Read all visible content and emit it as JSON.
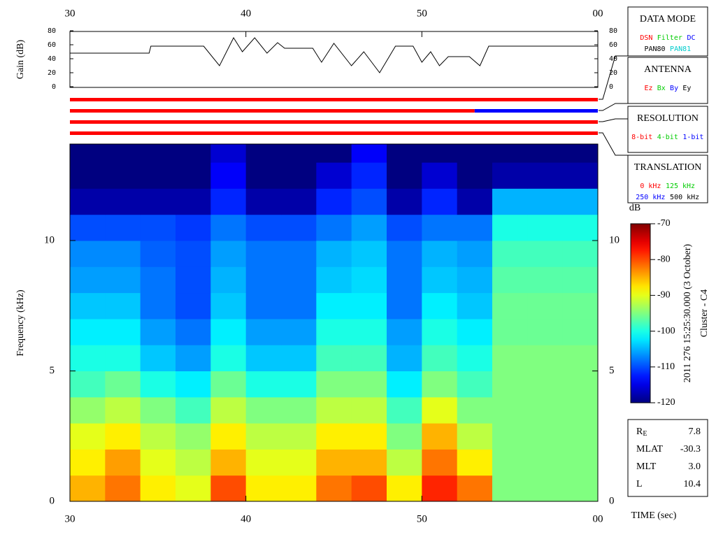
{
  "chart_data": [
    {
      "type": "line",
      "y_label": "Gain (dB)",
      "color": "#000000",
      "x": [
        30,
        34.5,
        34.6,
        37.6,
        38.5,
        39.3,
        39.8,
        40.5,
        41.2,
        41.8,
        42.2,
        43.8,
        44.3,
        45,
        46,
        46.7,
        47.6,
        48.5,
        49.5,
        50,
        50.5,
        51,
        51.5,
        52.7,
        53.3,
        53.8,
        60
      ],
      "values": [
        48,
        48,
        58,
        58,
        30,
        70,
        50,
        70,
        48,
        63,
        55,
        55,
        35,
        62,
        30,
        50,
        20,
        58,
        58,
        35,
        50,
        30,
        43,
        43,
        30,
        58,
        58
      ],
      "xlim": [
        30,
        60
      ],
      "ylim": [
        0,
        80
      ],
      "yticks": [
        0,
        20,
        40,
        60,
        80
      ],
      "xticks": [
        30,
        40,
        50,
        {
          "value": 60,
          "label": "00"
        }
      ]
    },
    {
      "type": "heatmap",
      "y_label": "Frequency (kHz)",
      "x_label": "TIME (sec)",
      "colormap": "jet",
      "x_bins": [
        30,
        32,
        34,
        36,
        38,
        40,
        42,
        44,
        46,
        48,
        50,
        52,
        54,
        56,
        58,
        60
      ],
      "y_bins": [
        0,
        1,
        2,
        3,
        4,
        5,
        6,
        7,
        8,
        9,
        10,
        11,
        12,
        13,
        13.7
      ],
      "z": [
        [
          -85,
          -82,
          -88,
          -90,
          -80,
          -88,
          -88,
          -82,
          -80,
          -88,
          -78,
          -82,
          -95,
          -95,
          -95
        ],
        [
          -88,
          -84,
          -90,
          -92,
          -85,
          -90,
          -90,
          -85,
          -85,
          -92,
          -82,
          -88,
          -95,
          -95,
          -95
        ],
        [
          -90,
          -88,
          -92,
          -94,
          -88,
          -92,
          -92,
          -88,
          -88,
          -95,
          -85,
          -92,
          -95,
          -95,
          -95
        ],
        [
          -94,
          -92,
          -95,
          -98,
          -92,
          -95,
          -95,
          -92,
          -92,
          -98,
          -90,
          -95,
          -95,
          -95,
          -95
        ],
        [
          -98,
          -96,
          -100,
          -102,
          -96,
          -100,
          -100,
          -95,
          -95,
          -102,
          -95,
          -98,
          -95,
          -95,
          -95
        ],
        [
          -100,
          -100,
          -104,
          -106,
          -100,
          -104,
          -104,
          -98,
          -98,
          -105,
          -98,
          -100,
          -95,
          -95,
          -95
        ],
        [
          -102,
          -102,
          -106,
          -108,
          -102,
          -106,
          -106,
          -100,
          -100,
          -106,
          -100,
          -102,
          -96,
          -96,
          -96
        ],
        [
          -104,
          -104,
          -108,
          -110,
          -104,
          -108,
          -108,
          -102,
          -102,
          -108,
          -102,
          -104,
          -96,
          -96,
          -96
        ],
        [
          -106,
          -106,
          -108,
          -110,
          -105,
          -108,
          -108,
          -104,
          -103,
          -108,
          -104,
          -105,
          -97,
          -97,
          -97
        ],
        [
          -107,
          -107,
          -109,
          -110,
          -106,
          -108,
          -108,
          -105,
          -104,
          -108,
          -105,
          -106,
          -98,
          -98,
          -98
        ],
        [
          -110,
          -110,
          -110,
          -111,
          -108,
          -110,
          -110,
          -108,
          -106,
          -110,
          -108,
          -108,
          -100,
          -100,
          -100
        ],
        [
          -118,
          -118,
          -118,
          -118,
          -112,
          -118,
          -118,
          -112,
          -110,
          -118,
          -112,
          -118,
          -105,
          -105,
          -105
        ],
        [
          -120,
          -120,
          -120,
          -120,
          -114,
          -120,
          -120,
          -116,
          -112,
          -120,
          -116,
          -120,
          -118,
          -118,
          -118
        ],
        [
          -120,
          -120,
          -120,
          -120,
          -116,
          -120,
          -120,
          -120,
          -114,
          -120,
          -120,
          -120,
          -120,
          -120,
          -120
        ]
      ],
      "xlim": [
        30,
        60
      ],
      "ylim": [
        0,
        13.7
      ],
      "yticks": [
        0,
        5,
        10
      ],
      "xticks": [
        30,
        40,
        50,
        {
          "value": 60,
          "label": "00"
        }
      ],
      "colorbar": {
        "label": "dB",
        "zlim": [
          -120,
          -70
        ],
        "ticks": [
          -120,
          -110,
          -100,
          -90,
          -80,
          -70
        ]
      }
    },
    {
      "type": "timeline",
      "xlim": [
        30,
        60
      ],
      "rows": [
        {
          "segments": [
            {
              "start": 30,
              "end": 60,
              "color": "#ff0000"
            }
          ]
        },
        {
          "segments": [
            {
              "start": 30,
              "end": 53,
              "color": "#ff0000"
            },
            {
              "start": 53,
              "end": 60,
              "color": "#0000ff"
            }
          ]
        },
        {
          "segments": [
            {
              "start": 30,
              "end": 60,
              "color": "#ff0000"
            }
          ]
        },
        {
          "segments": [
            {
              "start": 30,
              "end": 60,
              "color": "#ff0000"
            }
          ]
        }
      ]
    }
  ],
  "panels": [
    {
      "title": "DATA MODE",
      "lines": [
        [
          {
            "text": "DSN",
            "color": "#ff0000"
          },
          {
            "text": "Filter",
            "color": "#00cc00"
          },
          {
            "text": "DC",
            "color": "#0000ff"
          }
        ],
        [
          {
            "text": "PAN80",
            "color": "#000000"
          },
          {
            "text": "PAN81",
            "color": "#00cccc"
          }
        ]
      ]
    },
    {
      "title": "ANTENNA",
      "lines": [
        [
          {
            "text": "Ez",
            "color": "#ff0000"
          },
          {
            "text": "Bx",
            "color": "#00cc00"
          },
          {
            "text": "By",
            "color": "#0000ff"
          },
          {
            "text": "Ey",
            "color": "#000000"
          }
        ]
      ]
    },
    {
      "title": "RESOLUTION",
      "lines": [
        [
          {
            "text": "8-bit",
            "color": "#ff0000"
          },
          {
            "text": "4-bit",
            "color": "#00cc00"
          },
          {
            "text": "1-bit",
            "color": "#0000ff"
          }
        ]
      ]
    },
    {
      "title": "TRANSLATION",
      "lines": [
        [
          {
            "text": "0 kHz",
            "color": "#ff0000"
          },
          {
            "text": "125 kHz",
            "color": "#00cc00"
          }
        ],
        [
          {
            "text": "250 kHz",
            "color": "#0000ff"
          },
          {
            "text": "500 kHz",
            "color": "#000000"
          }
        ]
      ]
    }
  ],
  "orbit": [
    {
      "label": "R",
      "sub": "E",
      "value": "7.8"
    },
    {
      "label": "MLAT",
      "value": "-30.3"
    },
    {
      "label": "MLT",
      "value": "3.0"
    },
    {
      "label": "L",
      "value": "10.4"
    }
  ],
  "caption": [
    "2011 276 15:25:30.000 (3 October)",
    "Cluster - C4"
  ]
}
